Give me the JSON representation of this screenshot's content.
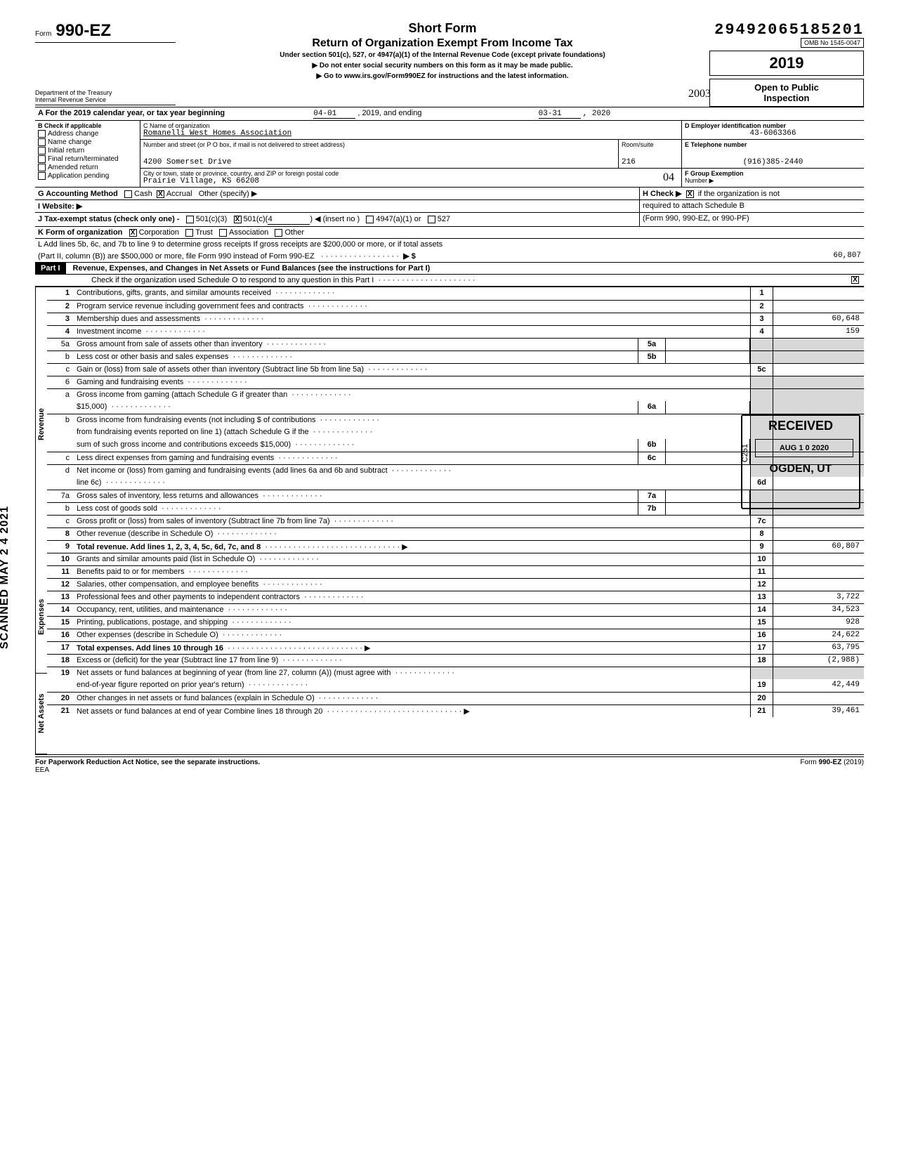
{
  "dln": "29492065185201",
  "omb": "OMB No 1545-0047",
  "form_word": "Form",
  "form_number": "990-EZ",
  "titles": {
    "short": "Short Form",
    "main": "Return of Organization Exempt From Income Tax",
    "sub": "Under section 501(c), 527, or 4947(a)(1) of the Internal Revenue Code (except private foundations)",
    "arrow1": "▶  Do not enter social security numbers on this form as it may be made public.",
    "arrow2": "▶  Go to www.irs.gov/Form990EZ for instructions and the latest information."
  },
  "year": "2019",
  "open": {
    "l1": "Open to Public",
    "l2": "Inspection"
  },
  "dept": {
    "l1": "Department of the Treasury",
    "l2": "Internal Revenue Service"
  },
  "hand_year": "2003",
  "period": {
    "label_a": "A  For the 2019 calendar year, or tax year beginning",
    "begin": "04-01",
    "mid": ", 2019, and ending",
    "end": "03-31",
    "end_year": ", 2020"
  },
  "b_label": "B  Check if applicable",
  "b_opts": [
    "Address change",
    "Name change",
    "Initial return",
    "Final return/terminated",
    "Amended return",
    "Application pending"
  ],
  "c": {
    "label": "C   Name of organization",
    "name": "Romanelli West Homes Association",
    "addr_label": "Number and street (or P O  box, if mail is not delivered to street address)",
    "street": "4200 Somerset Drive",
    "room_label": "Room/suite",
    "room": "216",
    "city_label": "City or town, state or province, country, and ZIP or foreign postal code",
    "city": "Prairie Village, KS 66208",
    "hand_note": "04"
  },
  "d": {
    "label": "D  Employer identification number",
    "ein": "43-6063366"
  },
  "e": {
    "label": "E  Telephone number",
    "phone": "(916)385-2440"
  },
  "f": {
    "label": "F  Group Exemption",
    "label2": "Number  ▶"
  },
  "g": {
    "label": "G  Accounting Method",
    "cash": "Cash",
    "accrual": "Accrual",
    "other": "Other (specify) ▶"
  },
  "h": {
    "label": "H  Check ▶",
    "text": "if the organization is not",
    "text2": "required to attach Schedule B",
    "text3": "(Form 990, 990-EZ, or 990-PF)"
  },
  "i": {
    "label": "I   Website:   ▶"
  },
  "j": {
    "label": "J   Tax-exempt status (check only one) -",
    "o1": "501(c)(3)",
    "o2": "501(c)(",
    "o2n": "4",
    "o2b": ")  ◀ (insert no )",
    "o3": "4947(a)(1) or",
    "o4": "527"
  },
  "k": {
    "label": "K  Form of organization",
    "o1": "Corporation",
    "o2": "Trust",
    "o3": "Association",
    "o4": "Other"
  },
  "l": {
    "l1": "L  Add lines 5b, 6c, and 7b to line 9 to determine gross receipts  If gross receipts are $200,000 or more, or if total assets",
    "l2": "(Part II, column (B)) are $500,000 or more, file Form 990 instead of Form 990-EZ",
    "arrow": "▶ $",
    "amount": "60,807"
  },
  "part1": {
    "tag": "Part I",
    "title": "Revenue, Expenses, and Changes in Net Assets or Fund Balances (see the instructions for Part I)",
    "check_line": "Check if the organization used Schedule O to respond to any question in this Part I",
    "checked": "X"
  },
  "side_labels": {
    "rev": "Revenue",
    "exp": "Expenses",
    "na": "Net Assets",
    "scanned": "SCANNED MAY 2 4 2021"
  },
  "stamp": {
    "received": "RECEIVED",
    "date": "AUG 1 0 2020",
    "loc": "OGDEN, UT",
    "code": "C251"
  },
  "lines": {
    "1": {
      "d": "Contributions, gifts, grants, and similar amounts received",
      "n": "1",
      "a": ""
    },
    "2": {
      "d": "Program service revenue including government fees and contracts",
      "n": "2",
      "a": ""
    },
    "3": {
      "d": "Membership dues and assessments",
      "n": "3",
      "a": "60,648"
    },
    "4": {
      "d": "Investment income",
      "n": "4",
      "a": "159"
    },
    "5a": {
      "d": "Gross amount from sale of assets other than inventory",
      "m": "5a"
    },
    "5b": {
      "d": "Less  cost or other basis and sales expenses",
      "m": "5b"
    },
    "5c": {
      "d": "Gain or (loss) from sale of assets other than inventory (Subtract line 5b from line 5a)",
      "n": "5c",
      "a": ""
    },
    "6": {
      "d": "Gaming and fundraising events"
    },
    "6a": {
      "d1": "Gross income from gaming (attach Schedule G if greater than",
      "d2": "$15,000)",
      "m": "6a"
    },
    "6b": {
      "d1": "Gross income from fundraising events (not including    $",
      "d1b": "of contributions",
      "d2": "from fundraising events reported on line 1) (attach Schedule G if the",
      "d3": "sum of such gross income and contributions exceeds $15,000)",
      "m": "6b"
    },
    "6c": {
      "d": "Less  direct expenses from gaming and fundraising events",
      "m": "6c"
    },
    "6d": {
      "d1": "Net income or (loss) from gaming and fundraising events (add lines 6a and 6b and subtract",
      "d2": "line 6c)",
      "n": "6d",
      "a": ""
    },
    "7a": {
      "d": "Gross sales of inventory, less returns and allowances",
      "m": "7a"
    },
    "7b": {
      "d": "Less  cost of goods sold",
      "m": "7b"
    },
    "7c": {
      "d": "Gross profit or (loss) from sales of inventory (Subtract line 7b from line 7a)",
      "n": "7c",
      "a": ""
    },
    "8": {
      "d": "Other revenue (describe in Schedule O)",
      "n": "8",
      "a": ""
    },
    "9": {
      "d": "Total revenue.  Add lines 1, 2, 3, 4, 5c, 6d, 7c, and 8",
      "n": "9",
      "a": "60,807",
      "arrow": "▶"
    },
    "10": {
      "d": "Grants and similar amounts paid (list in Schedule O)",
      "n": "10",
      "a": ""
    },
    "11": {
      "d": "Benefits paid to or for members",
      "n": "11",
      "a": ""
    },
    "12": {
      "d": "Salaries, other compensation, and employee benefits",
      "n": "12",
      "a": ""
    },
    "13": {
      "d": "Professional fees and other payments to independent contractors",
      "n": "13",
      "a": "3,722"
    },
    "14": {
      "d": "Occupancy, rent, utilities, and maintenance",
      "n": "14",
      "a": "34,523"
    },
    "15": {
      "d": "Printing, publications, postage, and shipping",
      "n": "15",
      "a": "928"
    },
    "16": {
      "d": "Other expenses (describe in Schedule O)",
      "n": "16",
      "a": "24,622"
    },
    "17": {
      "d": "Total expenses.  Add lines 10 through 16",
      "n": "17",
      "a": "63,795",
      "arrow": "▶"
    },
    "18": {
      "d": "Excess or (deficit) for the year (Subtract line 17 from line 9)",
      "n": "18",
      "a": "(2,988)"
    },
    "19": {
      "d1": "Net assets or fund balances at beginning of year (from line 27, column (A)) (must agree with",
      "d2": "end-of-year figure reported on prior year's return)",
      "n": "19",
      "a": "42,449"
    },
    "20": {
      "d": "Other changes in net assets or fund balances (explain in Schedule O)",
      "n": "20",
      "a": ""
    },
    "21": {
      "d": "Net assets or fund balances at end of year  Combine lines 18 through 20",
      "n": "21",
      "a": "39,461",
      "arrow": "▶"
    }
  },
  "footer": {
    "left": "For Paperwork Reduction Act Notice, see the separate instructions.",
    "eea": "EEA",
    "right": "Form 990-EZ (2019)"
  }
}
